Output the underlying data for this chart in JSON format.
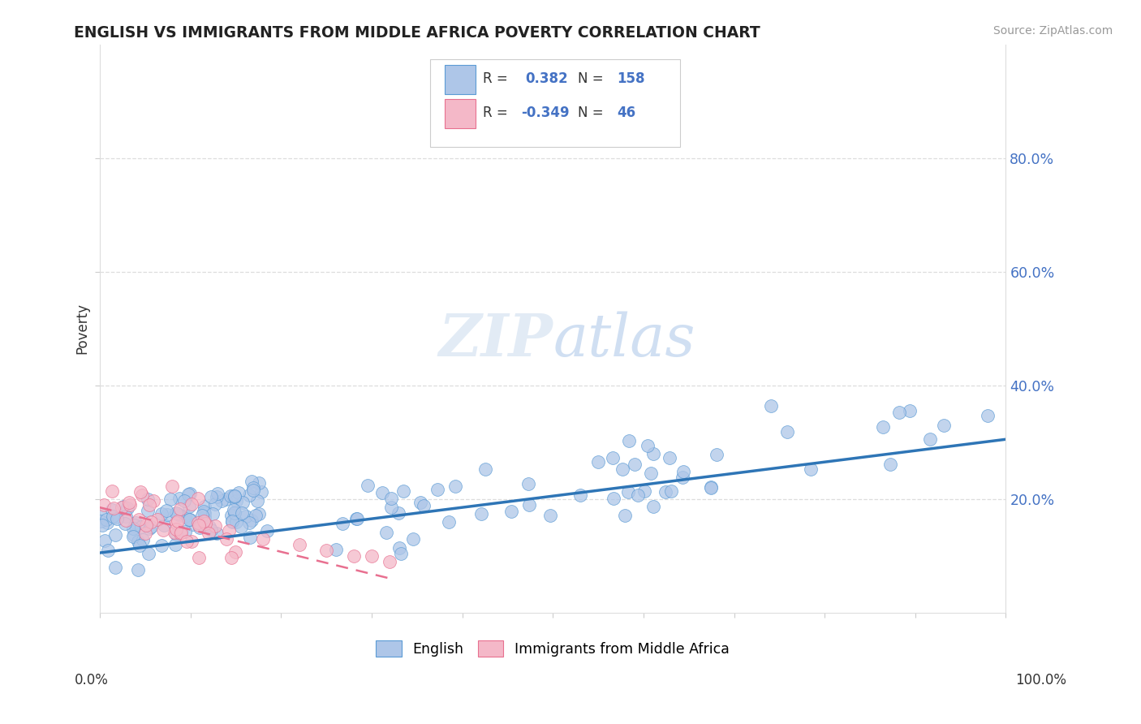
{
  "title": "ENGLISH VS IMMIGRANTS FROM MIDDLE AFRICA POVERTY CORRELATION CHART",
  "source": "Source: ZipAtlas.com",
  "ylabel": "Poverty",
  "legend_english": "English",
  "legend_immigrants": "Immigrants from Middle Africa",
  "r_english": 0.382,
  "n_english": 158,
  "r_immigrants": -0.349,
  "n_immigrants": 46,
  "color_english": "#aec6e8",
  "color_english_edge": "#5b9bd5",
  "color_immigrants": "#f4b8c8",
  "color_immigrants_edge": "#e87090",
  "color_english_line": "#2e75b6",
  "color_immigrants_line": "#e87090",
  "watermark": "ZIPatlas",
  "ytick_values": [
    0.2,
    0.4,
    0.6,
    0.8
  ],
  "ytick_labels": [
    "20.0%",
    "40.0%",
    "60.0%",
    "80.0%"
  ],
  "xlim": [
    0.0,
    1.0
  ],
  "ylim": [
    0.0,
    1.0
  ],
  "eng_line_x": [
    0.0,
    1.0
  ],
  "eng_line_y": [
    0.105,
    0.305
  ],
  "imm_line_x": [
    0.0,
    0.32
  ],
  "imm_line_y": [
    0.185,
    0.06
  ]
}
